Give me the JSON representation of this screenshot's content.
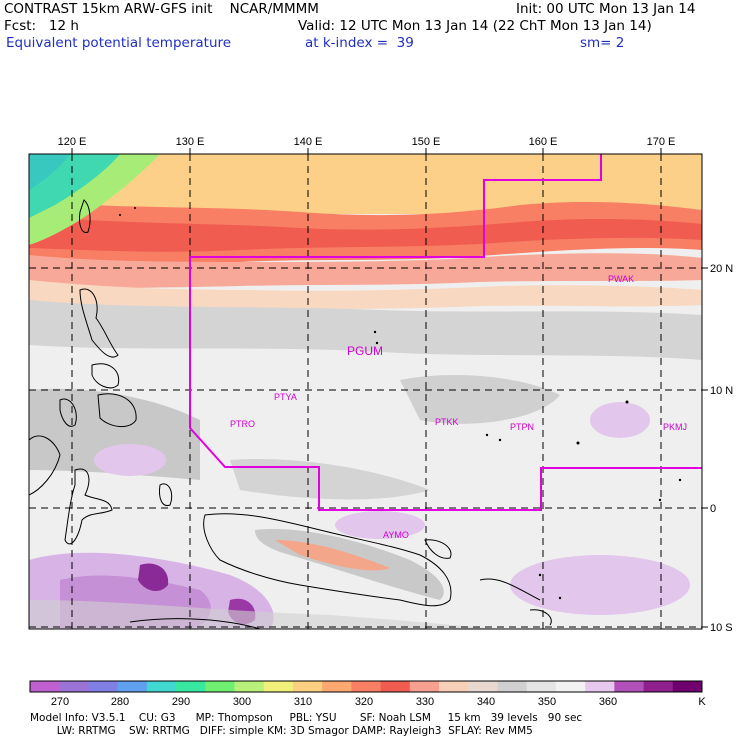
{
  "header": {
    "line1_left": "CONTRAST 15km ARW-GFS init    NCAR/MMMM",
    "line1_right": "Init: 00 UTC Mon 13 Jan 14",
    "line2_left": "Fcst:   12 h",
    "line2_right": "Valid: 12 UTC Mon 13 Jan 14 (22 ChT Mon 13 Jan 14)",
    "line3_left": "Equivalent potential temperature",
    "line3_mid": "at k-index =  39",
    "line3_right": "sm= 2"
  },
  "map": {
    "lon_labels": [
      "120 E",
      "130 E",
      "140 E",
      "150 E",
      "160 E",
      "170 E"
    ],
    "lat_labels": [
      "20 N",
      "10 N",
      "0",
      "10 S"
    ],
    "stations": [
      {
        "id": "PGUM"
      },
      {
        "id": "PTYA"
      },
      {
        "id": "PTRO"
      },
      {
        "id": "PTKK"
      },
      {
        "id": "PTPN"
      },
      {
        "id": "PKMJ"
      },
      {
        "id": "PWAK"
      },
      {
        "id": "AYMO"
      }
    ],
    "colors": {
      "boundary": "#e000e0",
      "station_label": "#d000d0",
      "coast": "#000000"
    }
  },
  "colorbar": {
    "unit": "K",
    "ticks": [
      "270",
      "280",
      "290",
      "300",
      "310",
      "320",
      "330",
      "340",
      "350",
      "360"
    ],
    "swatches": [
      "#c060d0",
      "#9b72d6",
      "#7f7fe6",
      "#5fa0f0",
      "#40d8d0",
      "#38e8a0",
      "#70f070",
      "#b8f07a",
      "#f0f07a",
      "#fcd080",
      "#fca870",
      "#f87e64",
      "#f05c50",
      "#f8a090",
      "#f8d0b8",
      "#e8d8d0",
      "#d0d0d0",
      "#e4e4e4",
      "#f2f2f2",
      "#e8c8ee",
      "#b050b8",
      "#902090",
      "#700070"
    ]
  },
  "footer": {
    "line1": "Model Info: V3.5.1    CU: G3      MP: Thompson     PBL: YSU       SF: Noah LSM     15 km   39 levels   90 sec",
    "line2": "        LW: RRTMG    SW: RRTMG   DIFF: simple KM: 3D Smagor DAMP: Rayleigh3  SFLAY: Rev MM5"
  }
}
